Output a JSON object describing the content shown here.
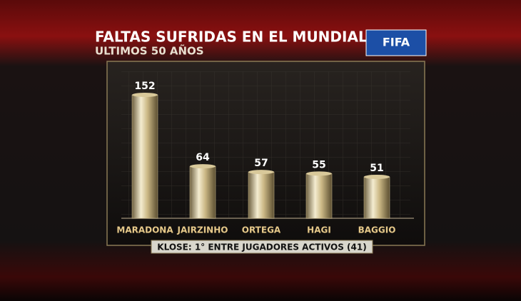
{
  "chart_data": {
    "type": "bar",
    "title": "FALTAS SUFRIDAS EN EL MUNDIAL",
    "subtitle": "ULTIMOS 50 AÑOS",
    "logo": "FIFA",
    "categories": [
      "MARADONA",
      "JAIRZINHO",
      "ORTEGA",
      "HAGI",
      "BAGGIO"
    ],
    "values": [
      152,
      64,
      57,
      55,
      51
    ],
    "color": "#d9c99a",
    "annotation": "KLOSE: 1° ENTRE JUGADORES ACTIVOS (41)"
  }
}
